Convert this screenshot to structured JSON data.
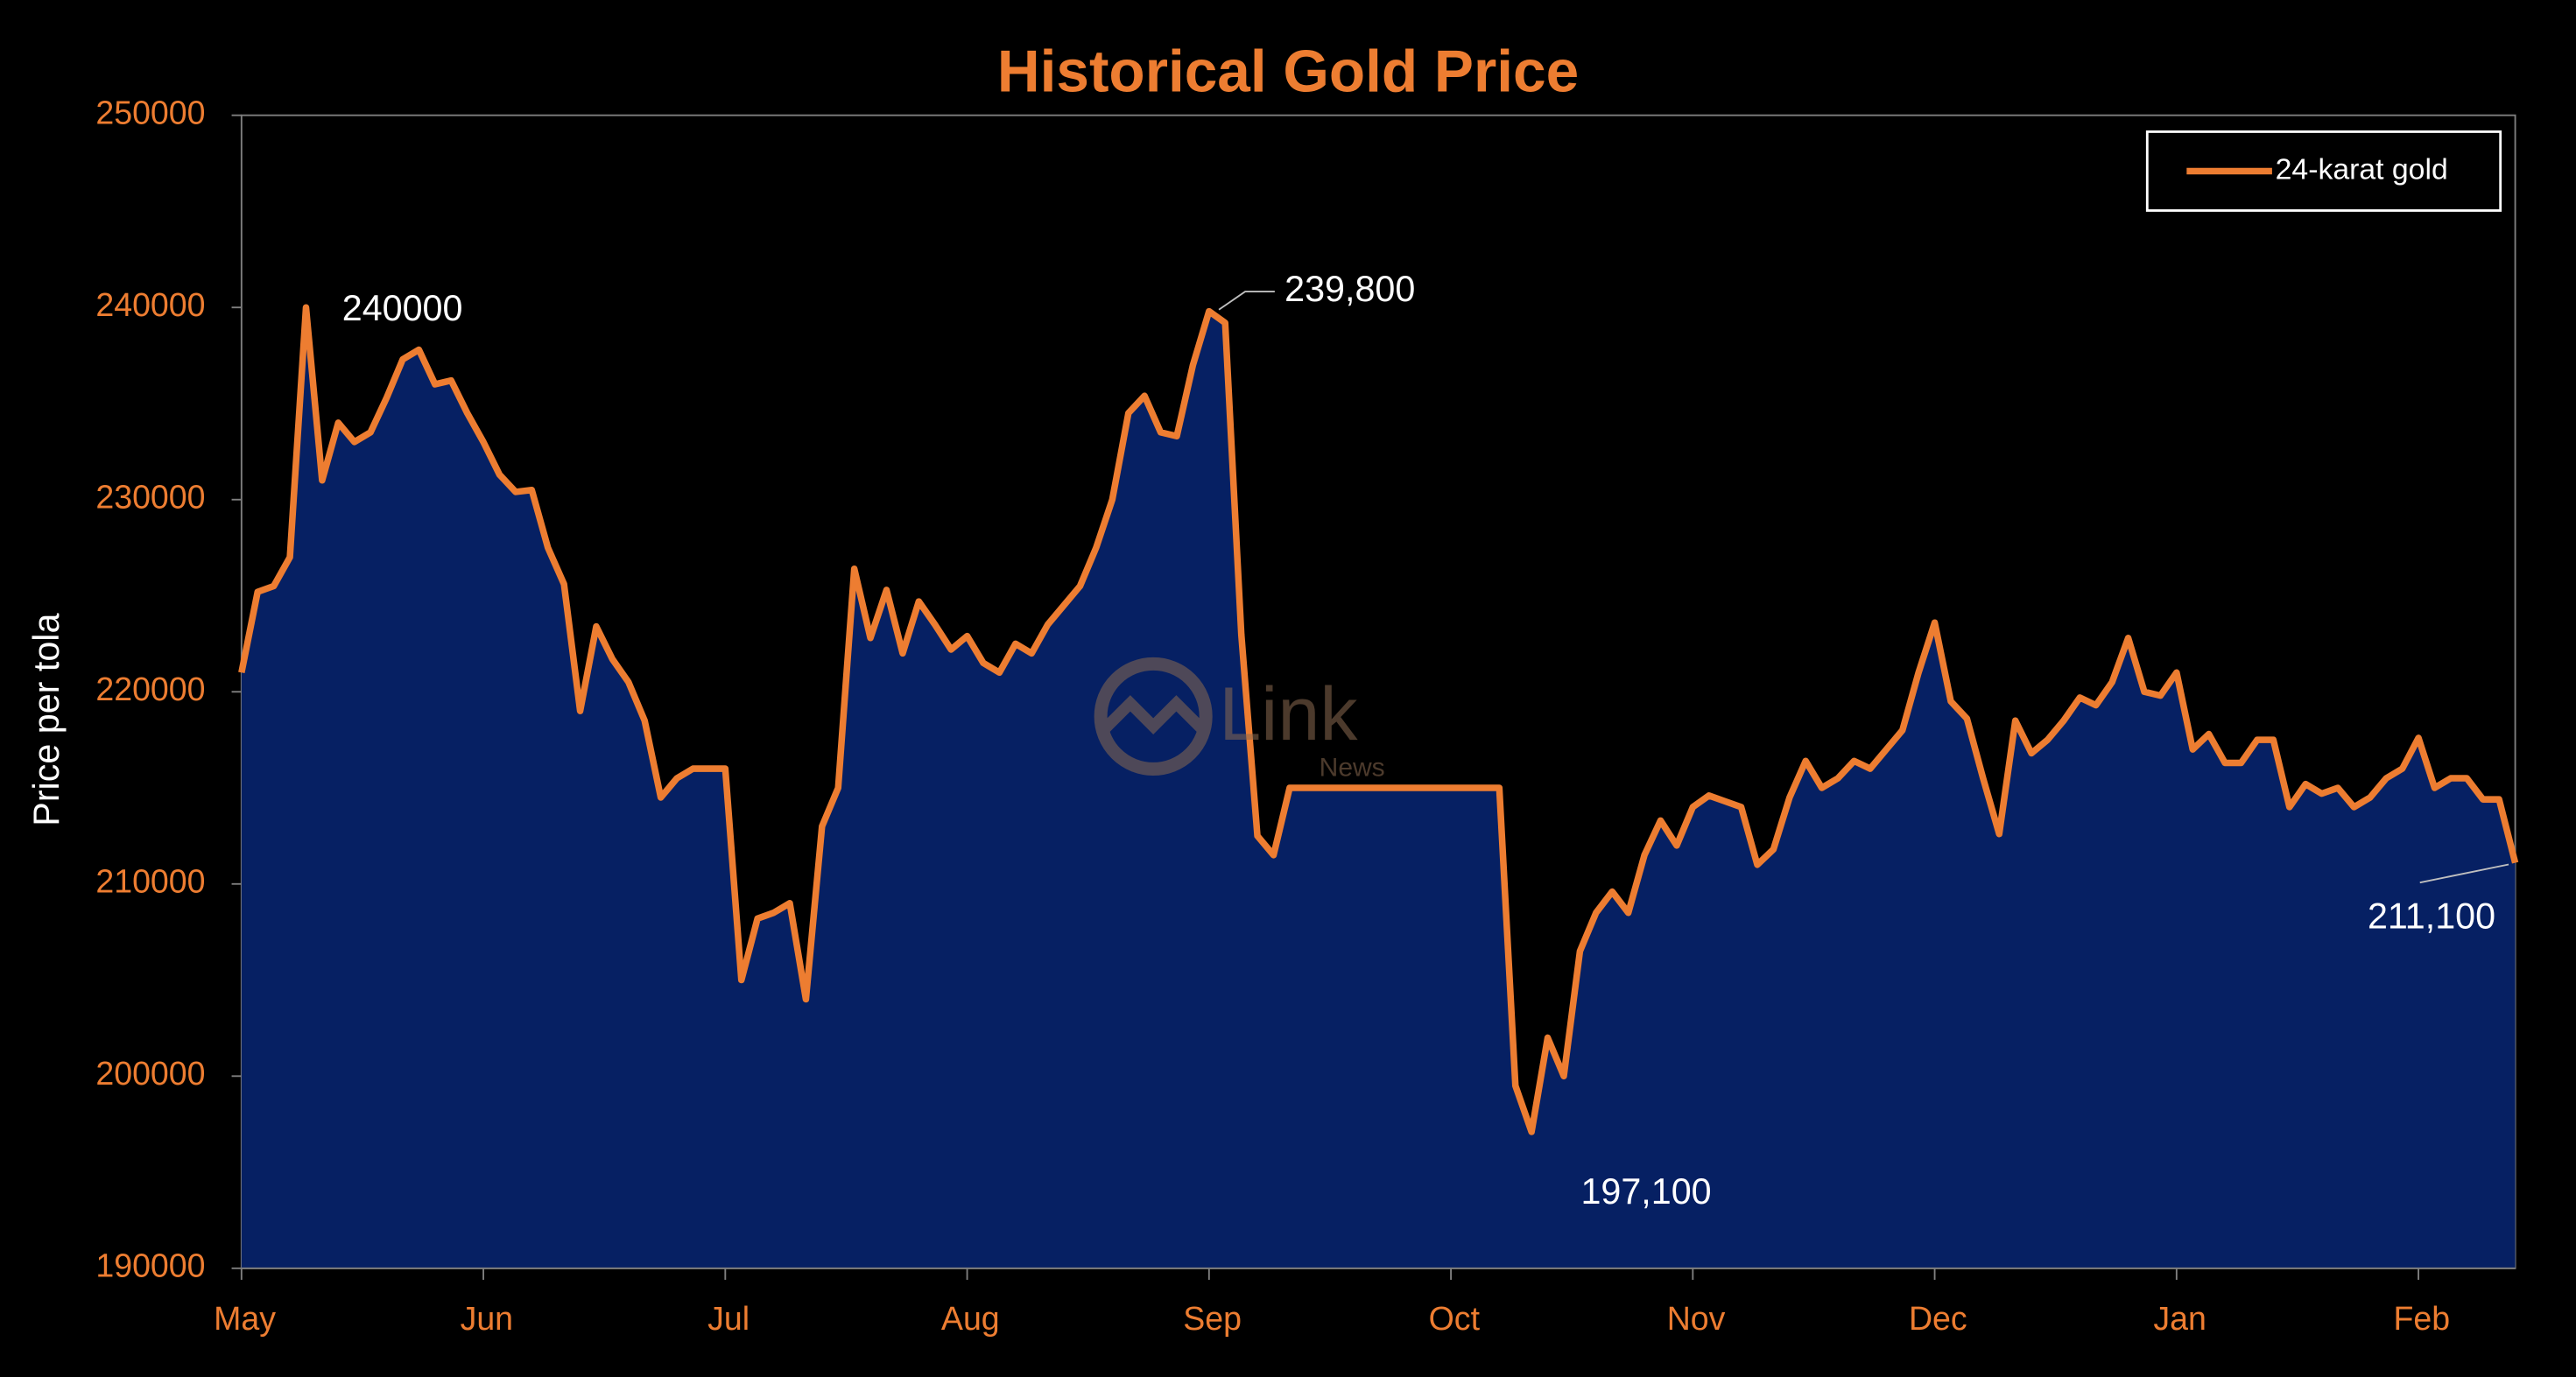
{
  "chart_data": {
    "type": "area",
    "title": "Historical Gold Price",
    "y_label": "Price per tola",
    "watermark": "Link",
    "watermark_sub": "News",
    "categories": [
      "May",
      null,
      null,
      null,
      null,
      null,
      null,
      null,
      null,
      null,
      null,
      null,
      null,
      null,
      null,
      "Jun",
      null,
      null,
      null,
      null,
      null,
      null,
      null,
      null,
      null,
      null,
      null,
      null,
      null,
      null,
      "Jul",
      null,
      null,
      null,
      null,
      null,
      null,
      null,
      null,
      null,
      null,
      null,
      null,
      null,
      null,
      "Aug",
      null,
      null,
      null,
      null,
      null,
      null,
      null,
      null,
      null,
      null,
      null,
      null,
      null,
      null,
      "Sep",
      null,
      null,
      null,
      null,
      null,
      null,
      null,
      null,
      null,
      null,
      null,
      null,
      null,
      null,
      "Oct",
      null,
      null,
      null,
      null,
      null,
      null,
      null,
      null,
      null,
      null,
      null,
      null,
      null,
      null,
      "Nov",
      null,
      null,
      null,
      null,
      null,
      null,
      null,
      null,
      null,
      null,
      null,
      null,
      null,
      null,
      "Dec",
      null,
      null,
      null,
      null,
      null,
      null,
      null,
      null,
      null,
      null,
      null,
      null,
      null,
      null,
      "Jan",
      null,
      null,
      null,
      null,
      null,
      null,
      null,
      null,
      null,
      null,
      null,
      null,
      null,
      null,
      "Feb",
      null,
      null,
      null,
      null,
      null,
      null
    ],
    "series": [
      {
        "name": "24-karat gold",
        "color": "#ED7D31",
        "fill": "#062063",
        "values": [
          221000,
          225200,
          225500,
          227000,
          240000,
          231000,
          234000,
          233000,
          233500,
          235300,
          237300,
          237800,
          236000,
          236200,
          234500,
          233000,
          231300,
          230400,
          230500,
          227500,
          225600,
          219000,
          223400,
          221700,
          220500,
          218500,
          214500,
          215500,
          216000,
          216000,
          216000,
          205000,
          208200,
          208500,
          209000,
          204000,
          213000,
          215000,
          226400,
          222800,
          225300,
          222000,
          224700,
          223500,
          222200,
          222900,
          221500,
          221000,
          222500,
          222000,
          223500,
          224500,
          225500,
          227500,
          230000,
          234500,
          235400,
          233500,
          233300,
          237000,
          239800,
          239200,
          223000,
          212500,
          211500,
          215000,
          215000,
          215000,
          215000,
          215000,
          215000,
          215000,
          215000,
          215000,
          215000,
          215000,
          215000,
          215000,
          215000,
          199500,
          197100,
          202000,
          200000,
          206500,
          208500,
          209600,
          208500,
          211500,
          213300,
          212000,
          214000,
          214600,
          214300,
          214000,
          211000,
          211800,
          214500,
          216400,
          215000,
          215500,
          216400,
          216000,
          217000,
          218000,
          221000,
          223600,
          219500,
          218600,
          215500,
          212600,
          218500,
          216800,
          217500,
          218500,
          219700,
          219300,
          220500,
          222800,
          220000,
          219800,
          221000,
          217000,
          217800,
          216300,
          216300,
          217500,
          217500,
          214000,
          215200,
          214700,
          215000,
          214000,
          214500,
          215500,
          216000,
          217600,
          215000,
          215500,
          215500,
          214400,
          214400,
          211100
        ],
        "value_labels": [
          null,
          null,
          null,
          null,
          "240000",
          null,
          null,
          null,
          null,
          null,
          null,
          null,
          null,
          null,
          null,
          null,
          null,
          null,
          null,
          null,
          null,
          null,
          null,
          null,
          null,
          null,
          null,
          null,
          null,
          null,
          null,
          null,
          null,
          null,
          null,
          null,
          null,
          null,
          null,
          null,
          null,
          null,
          null,
          null,
          null,
          null,
          null,
          null,
          null,
          null,
          null,
          null,
          null,
          null,
          null,
          null,
          null,
          null,
          null,
          null,
          "239,800",
          null,
          null,
          null,
          null,
          null,
          null,
          null,
          null,
          null,
          null,
          null,
          null,
          null,
          null,
          null,
          null,
          null,
          null,
          null,
          "197,100",
          null,
          null,
          null,
          null,
          null,
          null,
          null,
          null,
          null,
          null,
          null,
          null,
          null,
          null,
          null,
          null,
          null,
          null,
          null,
          null,
          null,
          null,
          null,
          null,
          null,
          null,
          null,
          null,
          null,
          null,
          null,
          null,
          null,
          null,
          null,
          null,
          null,
          null,
          null,
          null,
          null,
          null,
          null,
          null,
          null,
          null,
          null,
          null,
          null,
          null,
          null,
          null,
          null,
          null,
          null,
          null,
          null,
          null,
          null,
          null,
          "211,100"
        ]
      }
    ],
    "ylim": [
      190000,
      250000
    ],
    "yticks": [
      190000,
      200000,
      210000,
      220000,
      230000,
      240000,
      250000
    ],
    "grid": false,
    "legend": "upper right"
  }
}
